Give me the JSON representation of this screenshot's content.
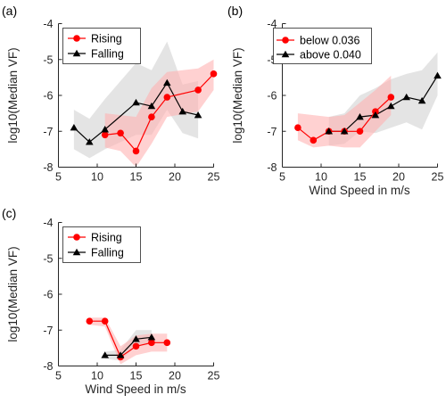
{
  "figure": {
    "colors": {
      "series_a": "#ff0000",
      "series_b": "#000000",
      "band_a": "#ffb3b3",
      "band_b": "#d9d9d9",
      "axis": "#262626"
    }
  },
  "chart_data": [
    {
      "panel_label": "(a)",
      "type": "line",
      "xlabel": "",
      "ylabel": "log10(Median VF)",
      "xlim": [
        5,
        25
      ],
      "ylim": [
        -8,
        -4
      ],
      "xticks": [
        5,
        10,
        15,
        20,
        25
      ],
      "yticks": [
        -8,
        -7,
        -6,
        -5,
        -4
      ],
      "legend_position": "top-left",
      "series": [
        {
          "name": "Rising",
          "color": "#ff0000",
          "marker": "circle",
          "x": [
            11,
            13,
            15,
            17,
            19,
            23,
            25
          ],
          "y": [
            -7.1,
            -7.05,
            -7.55,
            -6.6,
            -6.05,
            -5.85,
            -5.4
          ],
          "band_upper": [
            -6.5,
            -6.55,
            -6.6,
            -5.8,
            -5.35,
            -5.25,
            -5.0
          ],
          "band_lower": [
            -7.45,
            -7.55,
            -8.0,
            -7.35,
            -6.6,
            -6.45,
            -5.85
          ]
        },
        {
          "name": "Falling",
          "color": "#000000",
          "marker": "triangle",
          "x": [
            7,
            9,
            11,
            15,
            17,
            19,
            21,
            23
          ],
          "y": [
            -6.9,
            -7.3,
            -6.95,
            -6.2,
            -6.3,
            -5.65,
            -6.45,
            -6.55
          ],
          "band_upper": [
            -6.4,
            -6.65,
            -6.1,
            -5.1,
            -5.3,
            -4.5,
            -5.7,
            -5.6
          ],
          "band_lower": [
            -7.5,
            -7.75,
            -7.5,
            -7.1,
            -7.1,
            -6.4,
            -7.05,
            -7.2
          ]
        }
      ]
    },
    {
      "panel_label": "(b)",
      "type": "line",
      "xlabel": "Wind Speed in m/s",
      "ylabel": "log10(Median VF)",
      "xlim": [
        5,
        25
      ],
      "ylim": [
        -8,
        -4
      ],
      "xticks": [
        5,
        10,
        15,
        20,
        25
      ],
      "yticks": [
        -8,
        -7,
        -6,
        -5,
        -4
      ],
      "legend_position": "top-left",
      "series": [
        {
          "name": "below 0.036",
          "color": "#ff0000",
          "marker": "circle",
          "x": [
            7,
            9,
            11,
            13,
            15,
            17,
            19
          ],
          "y": [
            -6.9,
            -7.25,
            -7.0,
            -7.0,
            -7.0,
            -6.45,
            -6.05
          ],
          "band_upper": [
            -6.5,
            -6.55,
            -6.6,
            -6.55,
            -6.2,
            -5.85,
            -5.45
          ],
          "band_lower": [
            -7.25,
            -7.45,
            -7.4,
            -7.45,
            -7.45,
            -7.0,
            -6.55
          ]
        },
        {
          "name": "above 0.040",
          "color": "#000000",
          "marker": "triangle",
          "x": [
            11,
            13,
            15,
            17,
            19,
            21,
            23,
            25
          ],
          "y": [
            -7.0,
            -7.0,
            -6.6,
            -6.55,
            -6.3,
            -6.05,
            -6.15,
            -5.45
          ],
          "band_upper": [
            -6.6,
            -6.5,
            -6.0,
            -5.8,
            -5.55,
            -5.4,
            -5.3,
            -4.8
          ],
          "band_lower": [
            -7.4,
            -7.35,
            -7.0,
            -7.05,
            -6.9,
            -6.75,
            -6.95,
            -6.0
          ]
        }
      ]
    },
    {
      "panel_label": "(c)",
      "type": "line",
      "xlabel": "Wind Speed in m/s",
      "ylabel": "log10(Median VF)",
      "xlim": [
        5,
        25
      ],
      "ylim": [
        -8,
        -4
      ],
      "xticks": [
        5,
        10,
        15,
        20,
        25
      ],
      "yticks": [
        -8,
        -7,
        -6,
        -5,
        -4
      ],
      "legend_position": "top-left",
      "series": [
        {
          "name": "Rising",
          "color": "#ff0000",
          "marker": "circle",
          "x": [
            9,
            11,
            13,
            15,
            17,
            19
          ],
          "y": [
            -6.75,
            -6.75,
            -7.75,
            -7.45,
            -7.35,
            -7.35
          ],
          "band_upper": [
            -6.65,
            -6.65,
            -7.45,
            -7.15,
            -7.1,
            -7.1
          ],
          "band_lower": [
            -6.85,
            -6.9,
            -7.95,
            -7.7,
            -7.6,
            -7.6
          ]
        },
        {
          "name": "Falling",
          "color": "#000000",
          "marker": "triangle",
          "x": [
            11,
            13,
            15,
            17
          ],
          "y": [
            -7.7,
            -7.7,
            -7.25,
            -7.2
          ],
          "band_upper": [
            -7.6,
            -7.55,
            -7.0,
            -7.0
          ],
          "band_lower": [
            -7.8,
            -7.85,
            -7.45,
            -7.4
          ]
        }
      ]
    }
  ]
}
